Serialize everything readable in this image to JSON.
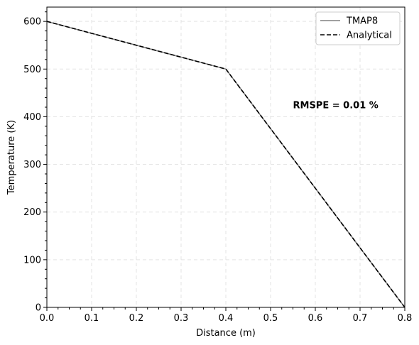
{
  "chart_data": {
    "type": "line",
    "xlabel": "Distance (m)",
    "ylabel": "Temperature (K)",
    "xlim": [
      0.0,
      0.8
    ],
    "ylim": [
      0,
      630
    ],
    "xticks": [
      0.0,
      0.1,
      0.2,
      0.3,
      0.4,
      0.5,
      0.6,
      0.7,
      0.8
    ],
    "xtick_labels": [
      "0.0",
      "0.1",
      "0.2",
      "0.3",
      "0.4",
      "0.5",
      "0.6",
      "0.7",
      "0.8"
    ],
    "yticks": [
      0,
      100,
      200,
      300,
      400,
      500,
      600
    ],
    "ytick_labels": [
      "0",
      "100",
      "200",
      "300",
      "400",
      "500",
      "600"
    ],
    "grid": true,
    "legend_position": "top-right",
    "series": [
      {
        "name": "TMAP8",
        "style": "solid",
        "color": "#808080",
        "x": [
          0.0,
          0.4,
          0.8
        ],
        "y": [
          600,
          500,
          0
        ]
      },
      {
        "name": "Analytical",
        "style": "dashed",
        "color": "#000000",
        "x": [
          0.0,
          0.4,
          0.8
        ],
        "y": [
          600,
          500,
          0
        ]
      }
    ],
    "annotation": {
      "text": "RMSPE = 0.01 %",
      "x": 0.55,
      "y": 425
    }
  }
}
